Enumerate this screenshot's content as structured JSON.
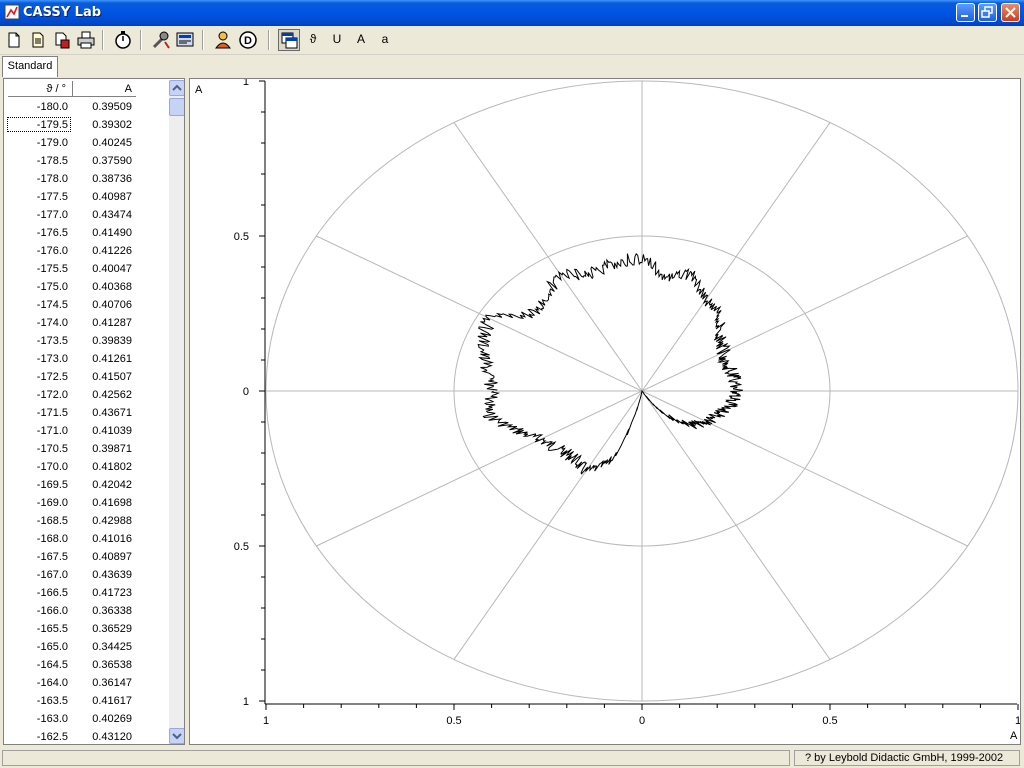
{
  "window": {
    "title": "CASSY Lab"
  },
  "toolbar": {
    "buttons": [
      {
        "name": "new-file-icon"
      },
      {
        "name": "open-file-icon"
      },
      {
        "name": "save-file-icon"
      },
      {
        "name": "print-icon"
      },
      {
        "name": "stopwatch-icon"
      },
      {
        "name": "settings-icon"
      },
      {
        "name": "display-icon"
      },
      {
        "name": "user-icon"
      },
      {
        "name": "help-icon"
      },
      {
        "name": "window-icon"
      }
    ],
    "text_buttons": [
      "ϑ",
      "U",
      "A",
      "a"
    ]
  },
  "tabs": [
    {
      "label": "Standard"
    }
  ],
  "table": {
    "columns": [
      "ϑ / °",
      "A"
    ],
    "rows": [
      [
        "-180.0",
        "0.39509"
      ],
      [
        "-179.5",
        "0.39302"
      ],
      [
        "-179.0",
        "0.40245"
      ],
      [
        "-178.5",
        "0.37590"
      ],
      [
        "-178.0",
        "0.38736"
      ],
      [
        "-177.5",
        "0.40987"
      ],
      [
        "-177.0",
        "0.43474"
      ],
      [
        "-176.5",
        "0.41490"
      ],
      [
        "-176.0",
        "0.41226"
      ],
      [
        "-175.5",
        "0.40047"
      ],
      [
        "-175.0",
        "0.40368"
      ],
      [
        "-174.5",
        "0.40706"
      ],
      [
        "-174.0",
        "0.41287"
      ],
      [
        "-173.5",
        "0.39839"
      ],
      [
        "-173.0",
        "0.41261"
      ],
      [
        "-172.5",
        "0.41507"
      ],
      [
        "-172.0",
        "0.42562"
      ],
      [
        "-171.5",
        "0.43671"
      ],
      [
        "-171.0",
        "0.41039"
      ],
      [
        "-170.5",
        "0.39871"
      ],
      [
        "-170.0",
        "0.41802"
      ],
      [
        "-169.5",
        "0.42042"
      ],
      [
        "-169.0",
        "0.41698"
      ],
      [
        "-168.5",
        "0.42988"
      ],
      [
        "-168.0",
        "0.41016"
      ],
      [
        "-167.5",
        "0.40897"
      ],
      [
        "-167.0",
        "0.43639"
      ],
      [
        "-166.5",
        "0.41723"
      ],
      [
        "-166.0",
        "0.36338"
      ],
      [
        "-165.5",
        "0.36529"
      ],
      [
        "-165.0",
        "0.34425"
      ],
      [
        "-164.5",
        "0.36538"
      ],
      [
        "-164.0",
        "0.36147"
      ],
      [
        "-163.5",
        "0.41617"
      ],
      [
        "-163.0",
        "0.40269"
      ],
      [
        "-162.5",
        "0.43120"
      ]
    ],
    "selected_row": 1
  },
  "chart_data": {
    "type": "polar",
    "ylabel": "A",
    "xlabel": "A",
    "y_ticks": [
      "1",
      "0.5",
      "0",
      "0.5",
      "1"
    ],
    "x_ticks": [
      "1",
      "0.5",
      "0",
      "0.5",
      "1"
    ],
    "rmax": 1,
    "rings": [
      0.5,
      1.0
    ],
    "spokes_deg": [
      0,
      30,
      60,
      90,
      120,
      150,
      180,
      210,
      240,
      270,
      300,
      330
    ],
    "series": [
      {
        "theta_deg": [
          -180,
          -170,
          -160,
          -150,
          -140,
          -130,
          -120,
          -110,
          -100,
          -90,
          -80,
          -70,
          -60,
          -50,
          -40,
          -30,
          -20,
          -10,
          0,
          10,
          20,
          30,
          40,
          50,
          60,
          70,
          80,
          90,
          100,
          110,
          120,
          130,
          140,
          150,
          160,
          170,
          180
        ],
        "r": [
          0.395,
          0.418,
          0.36,
          0.31,
          0.29,
          0.28,
          0.3,
          0.24,
          0.0,
          0.0,
          0.0,
          0.0,
          0.0,
          0.1,
          0.17,
          0.2,
          0.22,
          0.24,
          0.25,
          0.25,
          0.24,
          0.25,
          0.27,
          0.32,
          0.34,
          0.4,
          0.37,
          0.43,
          0.42,
          0.4,
          0.43,
          0.4,
          0.38,
          0.47,
          0.45,
          0.42,
          0.395
        ]
      }
    ]
  },
  "status": {
    "right_text": "? by Leybold Didactic GmbH, 1999-2002"
  }
}
